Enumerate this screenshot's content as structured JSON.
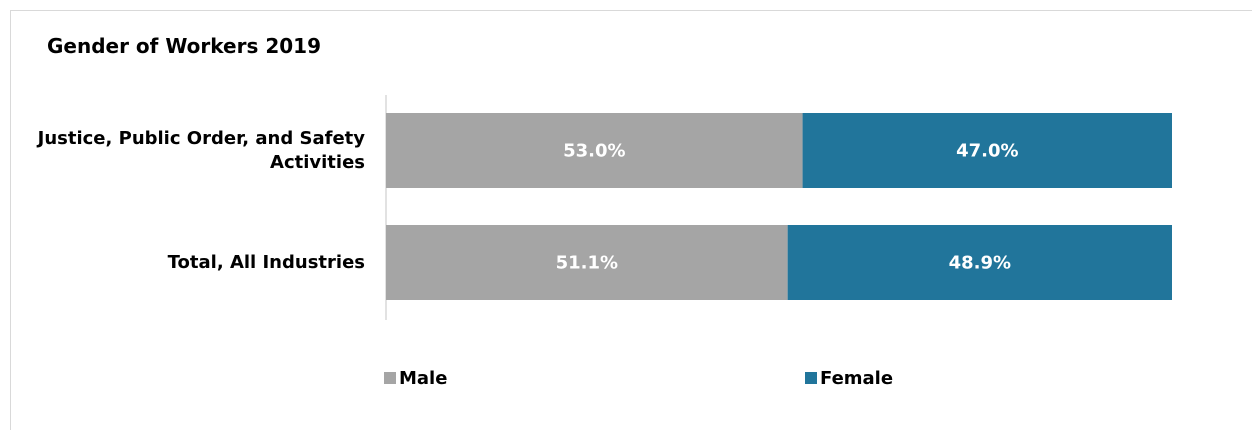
{
  "chart_data": {
    "type": "stacked-bar",
    "orientation": "horizontal",
    "title": "Gender of Workers 2019",
    "categories": [
      "Justice, Public Order, and Safety Activities",
      "Total, All Industries"
    ],
    "series": [
      {
        "name": "Male",
        "color": "#a5a5a5",
        "values": [
          53.0,
          51.1
        ],
        "value_labels": [
          "53.0%",
          "51.1%"
        ]
      },
      {
        "name": "Female",
        "color": "#21759b",
        "values": [
          47.0,
          48.9
        ],
        "value_labels": [
          "47.0%",
          "48.9%"
        ]
      }
    ],
    "xlim": [
      0,
      100
    ],
    "legend": "bottom"
  }
}
